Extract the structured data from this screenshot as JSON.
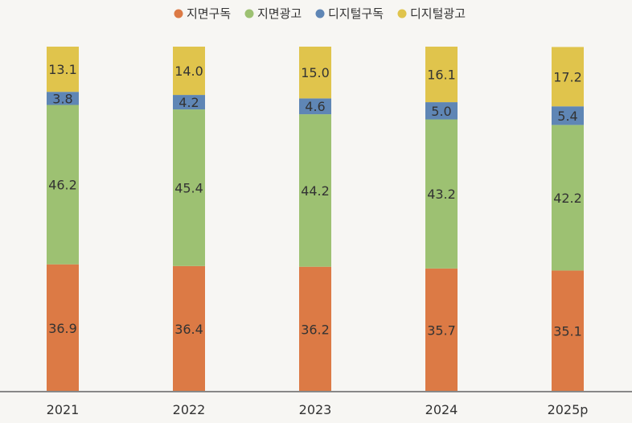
{
  "chart_data": {
    "type": "bar",
    "stacked": true,
    "categories": [
      "2021",
      "2022",
      "2023",
      "2024",
      "2025p"
    ],
    "series": [
      {
        "name": "지면구독",
        "color": "#dc7a45",
        "values": [
          36.9,
          36.4,
          36.2,
          35.7,
          35.1
        ]
      },
      {
        "name": "지면광고",
        "color": "#9dc172",
        "values": [
          46.2,
          45.4,
          44.2,
          43.2,
          42.2
        ]
      },
      {
        "name": "디지털구독",
        "color": "#5f86b5",
        "values": [
          3.8,
          4.2,
          4.6,
          5.0,
          5.4
        ]
      },
      {
        "name": "디지털광고",
        "color": "#e0c44c",
        "values": [
          13.1,
          14.0,
          15.0,
          16.1,
          17.2
        ]
      }
    ],
    "ylim": [
      0,
      100
    ],
    "legend": "top-center",
    "grid": false,
    "axis_color": "#888888"
  }
}
